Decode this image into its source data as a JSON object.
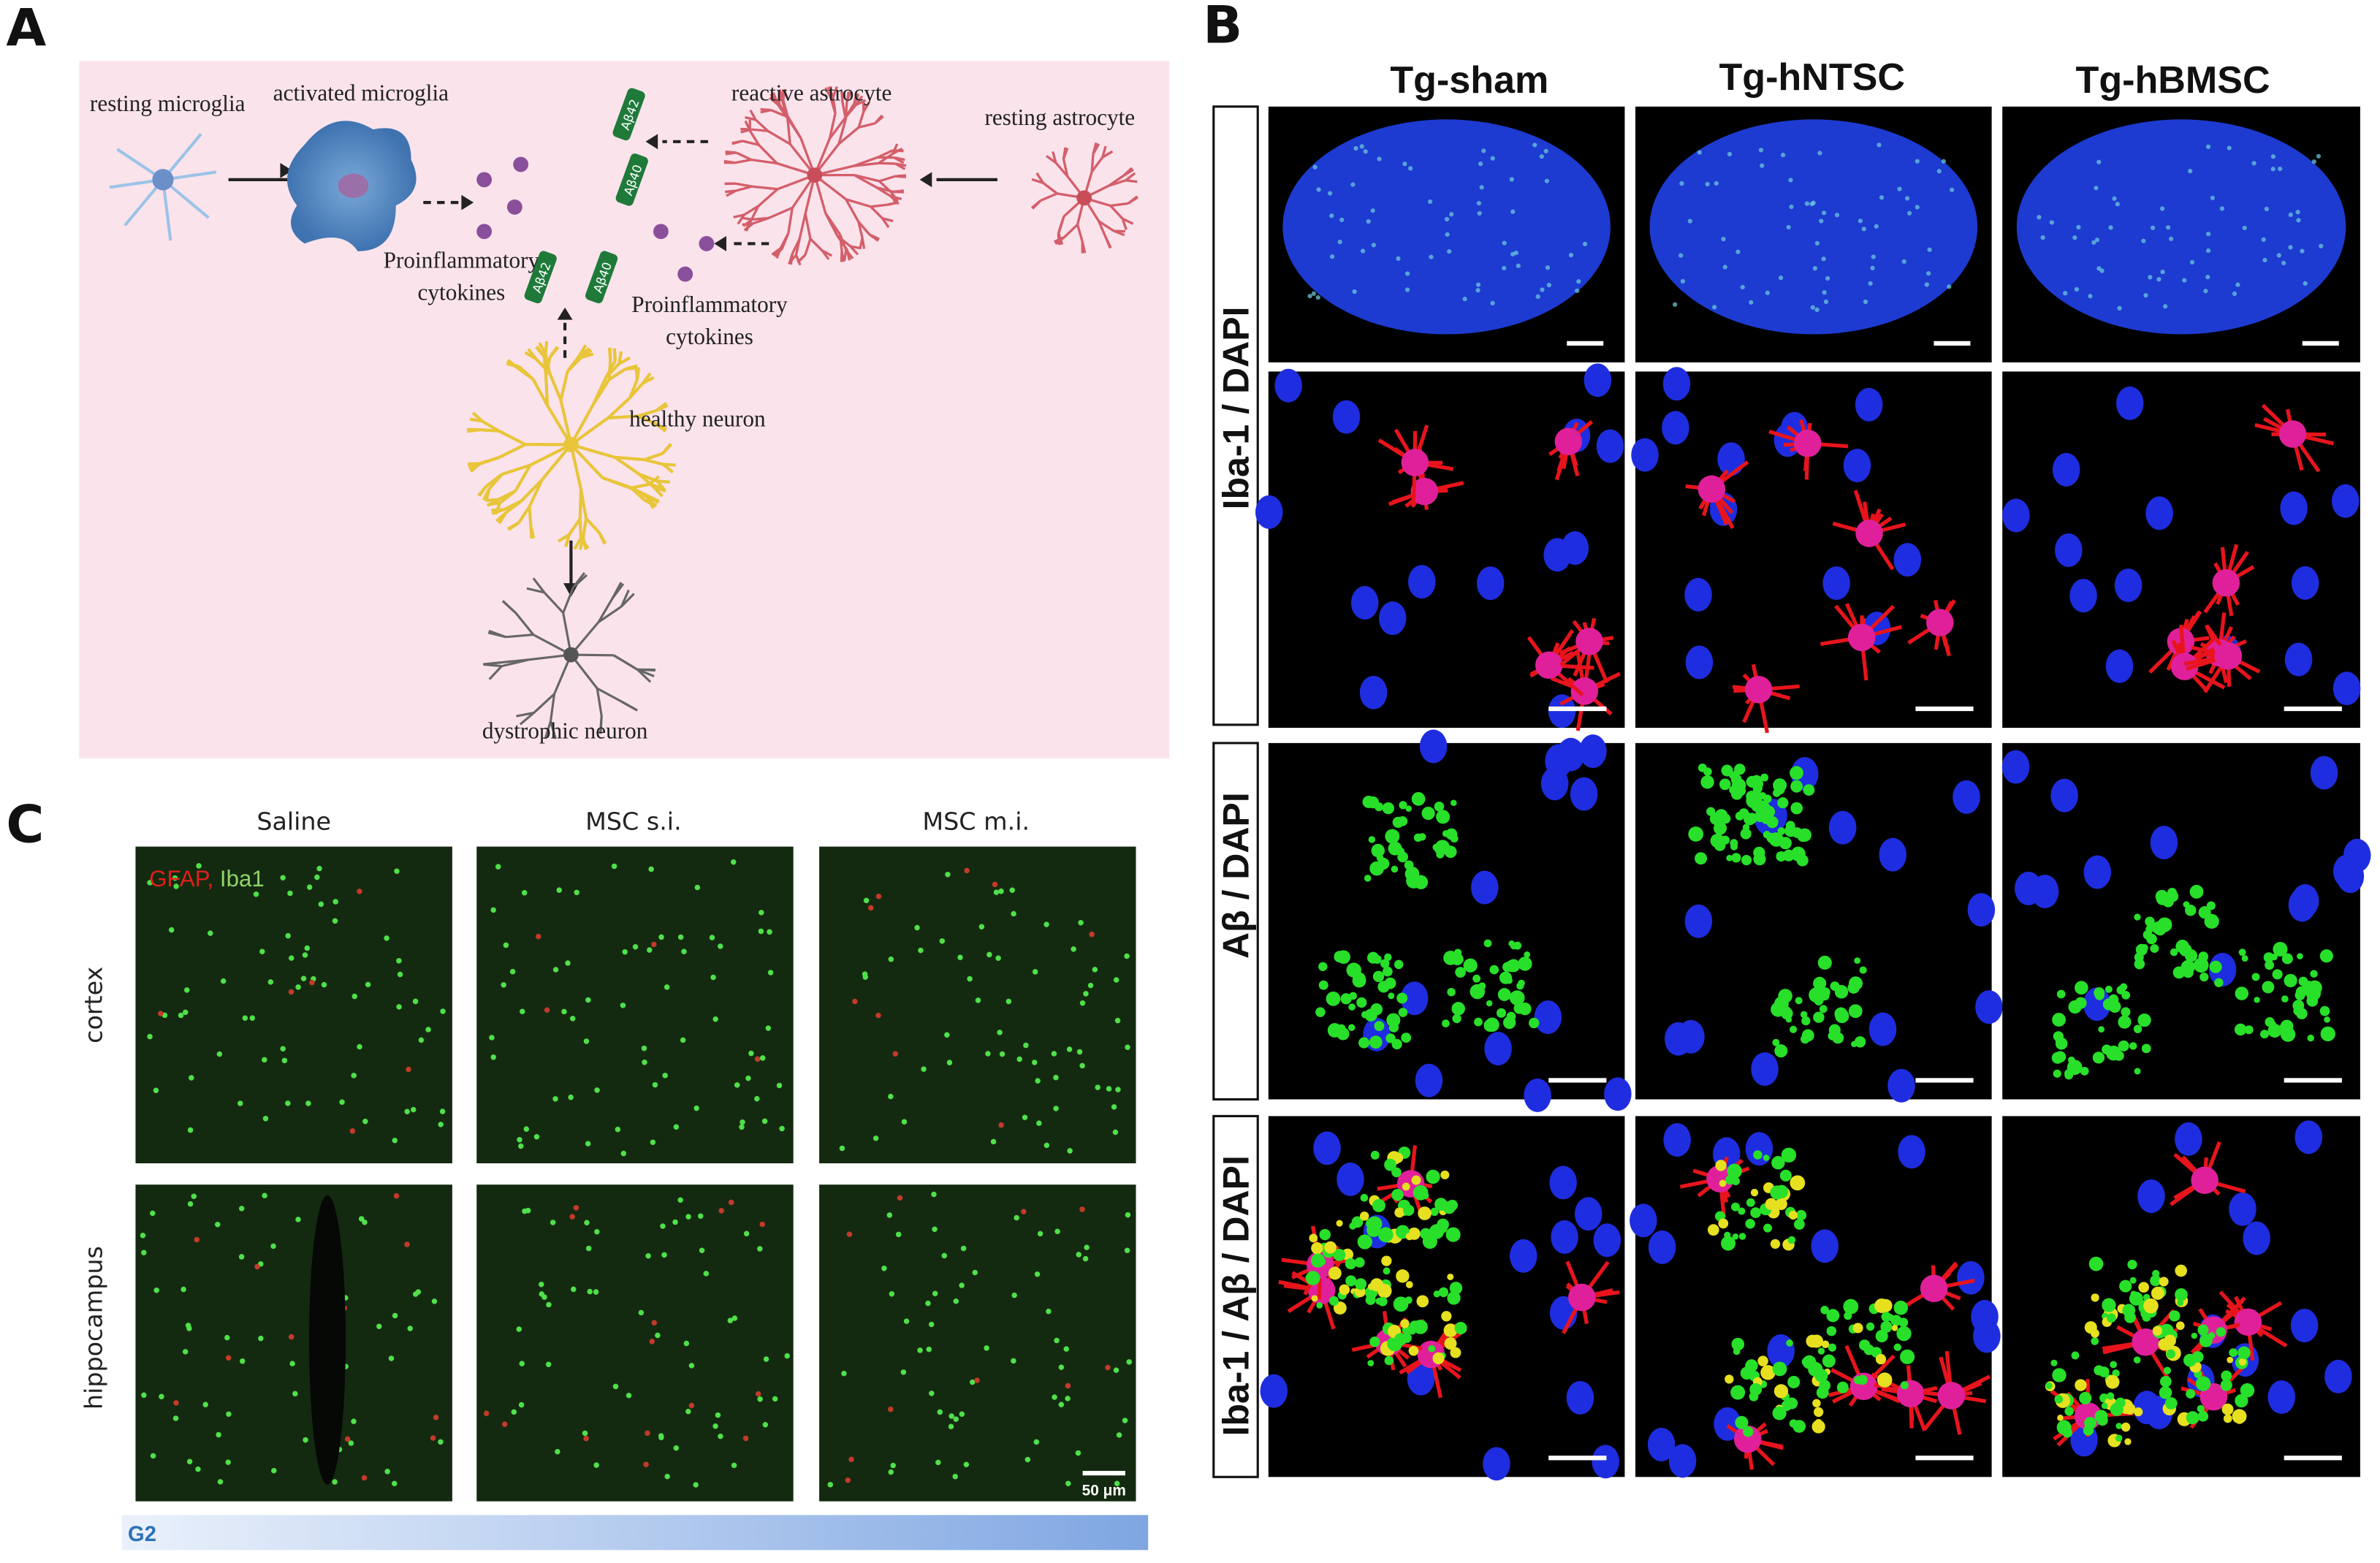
{
  "panels": {
    "A": {
      "label": "A",
      "texts": {
        "resting_microglia": "resting microglia",
        "activated_microglia": "activated microglia",
        "reactive_astrocyte": "reactive astrocyte",
        "resting_astrocyte": "resting astrocyte",
        "cytokines_left": [
          "Proinflammatory",
          "cytokines"
        ],
        "cytokines_right": [
          "Proinflammatory",
          "cytokines"
        ],
        "healthy_neuron": "healthy neuron",
        "dystrophic_neuron": "dystrophic neuron"
      },
      "peptides": [
        "Aβ42",
        "Aβ40",
        "Aβ42",
        "Aβ40"
      ]
    },
    "B": {
      "label": "B",
      "columns": [
        "Tg-sham",
        "Tg-hNTSC",
        "Tg-hBMSC"
      ],
      "rows": [
        "Iba-1 / DAPI",
        "Aβ / DAPI",
        "Iba-1 / Aβ / DAPI"
      ]
    },
    "C": {
      "label": "C",
      "columns": [
        "Saline",
        "MSC s.i.",
        "MSC m.i."
      ],
      "rows": [
        "cortex",
        "hippocampus"
      ],
      "stain": [
        "GFAP,",
        "Iba1"
      ],
      "scale_bar": "50 μm",
      "group": "G2"
    }
  }
}
